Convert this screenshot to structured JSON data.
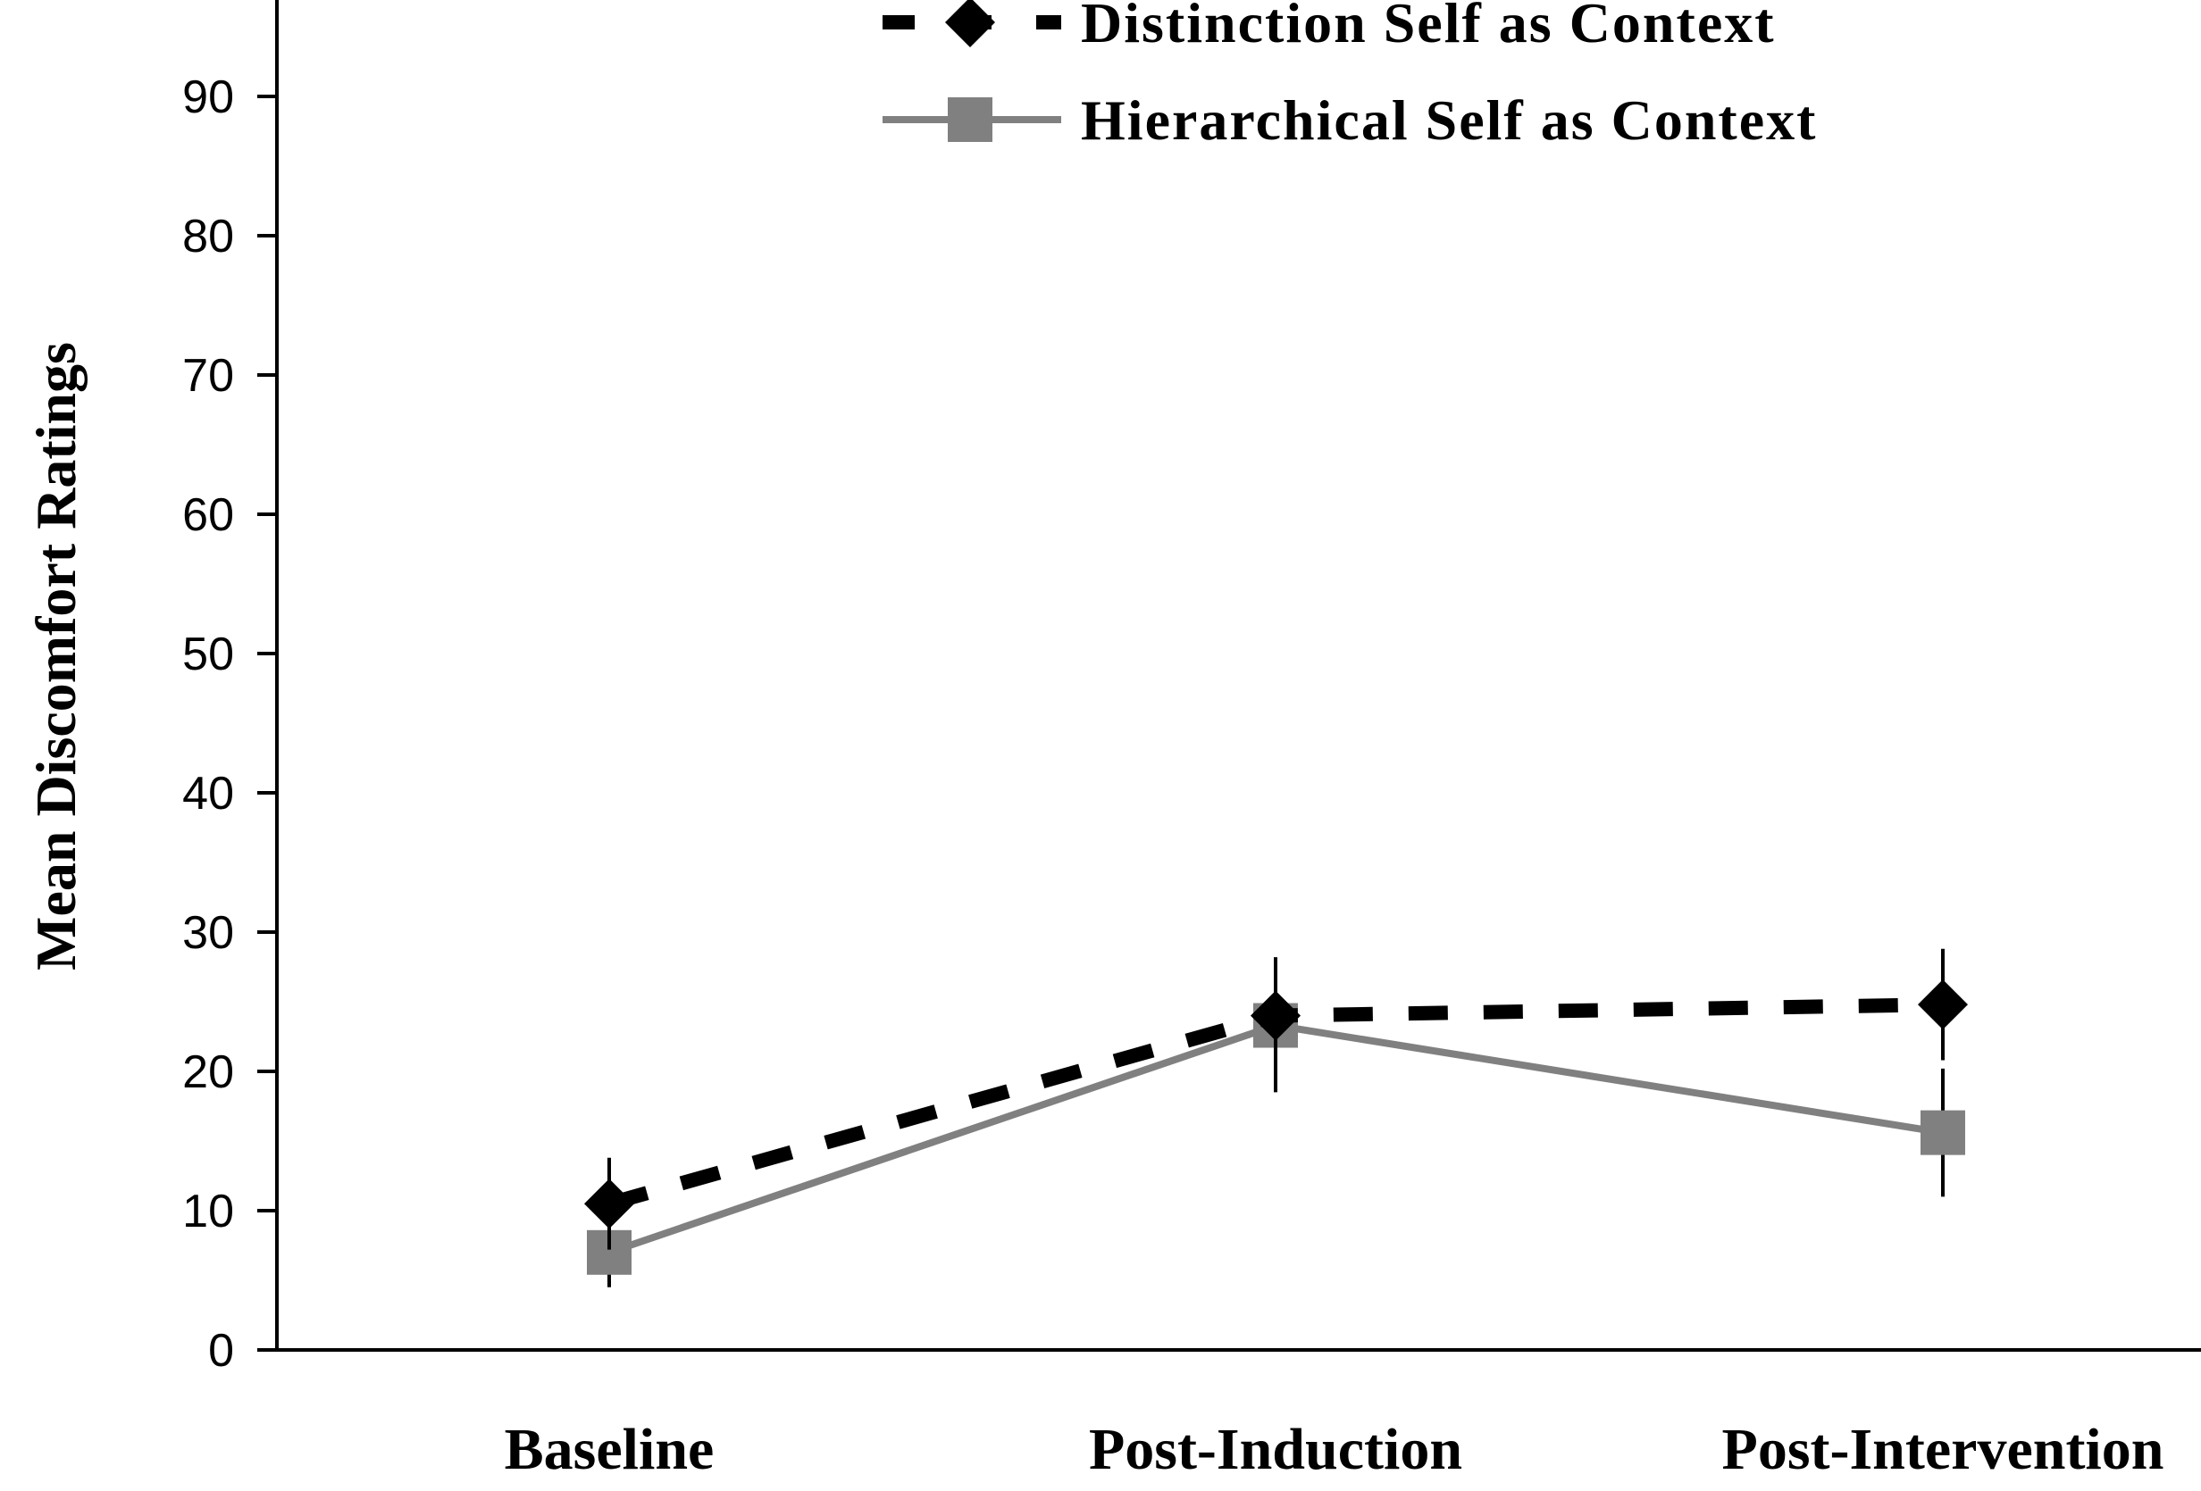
{
  "chart_data": {
    "type": "line",
    "title": "",
    "xlabel": "",
    "ylabel": "Mean Discomfort Ratings",
    "categories": [
      "Baseline",
      "Post-Induction",
      "Post-Intervention"
    ],
    "ylim": [
      0,
      100
    ],
    "yticks": [
      0,
      10,
      20,
      30,
      40,
      50,
      60,
      70,
      80,
      90
    ],
    "grid": false,
    "legend_position": "top",
    "series": [
      {
        "name": "Distinction Self as Context",
        "values": [
          10.5,
          24,
          24.8
        ],
        "error": [
          3.3,
          4.2,
          4
        ],
        "color": "#000000",
        "line_style": "dashed",
        "marker": "diamond"
      },
      {
        "name": "Hierarchical Self as Context",
        "values": [
          7,
          23.3,
          15.6
        ],
        "error": [
          2.5,
          4.8,
          4.6
        ],
        "color": "#808080",
        "line_style": "solid",
        "marker": "square"
      }
    ]
  }
}
